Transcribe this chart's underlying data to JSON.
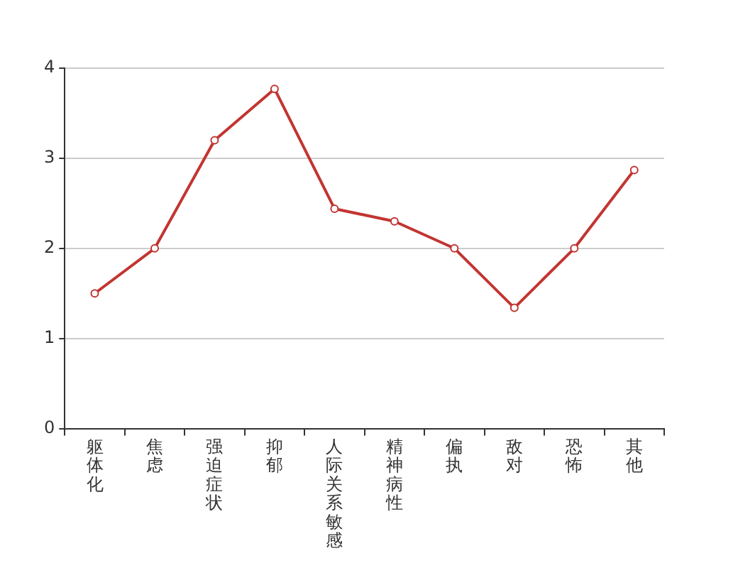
{
  "chart_data": {
    "type": "line",
    "categories": [
      "躯体化",
      "焦虑",
      "强迫症状",
      "抑郁",
      "人际关系敏感",
      "精神病性",
      "偏执",
      "敌对",
      "恐怖",
      "其他"
    ],
    "series": [
      {
        "color": "#c23531",
        "values": [
          1.5,
          2.0,
          3.2,
          3.77,
          2.44,
          2.3,
          2.0,
          1.34,
          2.0,
          2.87
        ]
      }
    ],
    "ylim": [
      0,
      4
    ],
    "yticks": [
      0,
      1,
      2,
      3,
      4
    ],
    "grid": "y",
    "marker": "circle",
    "line_style": "solid"
  }
}
